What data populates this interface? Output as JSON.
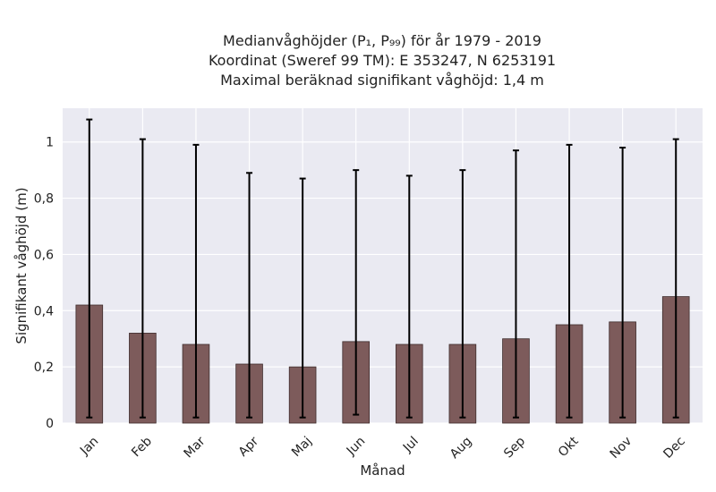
{
  "chart_data": {
    "type": "bar",
    "title_lines": [
      "Medianvåghöjder (P₁, P₉₉) för år 1979 - 2019",
      "Koordinat (Sweref 99 TM): E 353247, N 6253191",
      "Maximal beräknad signifikant våghöjd: 1,4 m"
    ],
    "xlabel": "Månad",
    "ylabel": "Signifikant våghöjd (m)",
    "categories": [
      "Jan",
      "Feb",
      "Mar",
      "Apr",
      "Maj",
      "Jun",
      "Jul",
      "Aug",
      "Sep",
      "Okt",
      "Nov",
      "Dec"
    ],
    "values": [
      0.42,
      0.32,
      0.28,
      0.21,
      0.2,
      0.29,
      0.28,
      0.28,
      0.3,
      0.35,
      0.36,
      0.45
    ],
    "p1": [
      0.02,
      0.02,
      0.02,
      0.02,
      0.02,
      0.03,
      0.02,
      0.02,
      0.02,
      0.02,
      0.02,
      0.02
    ],
    "p99": [
      1.08,
      1.01,
      0.99,
      0.89,
      0.87,
      0.9,
      0.88,
      0.9,
      0.97,
      0.99,
      0.98,
      1.01
    ],
    "ylim": [
      0,
      1.12
    ],
    "yticks": [
      0,
      0.2,
      0.4,
      0.6,
      0.8,
      1.0
    ],
    "ytick_labels": [
      "0",
      "0,2",
      "0,4",
      "0,6",
      "0,8",
      "1"
    ],
    "grid": true,
    "colors": {
      "bar": "#7d5b5b",
      "bar_edge": "#3f2d2d",
      "plot_bg": "#eaeaf2",
      "grid": "#ffffff",
      "errorbar": "#000000"
    }
  }
}
